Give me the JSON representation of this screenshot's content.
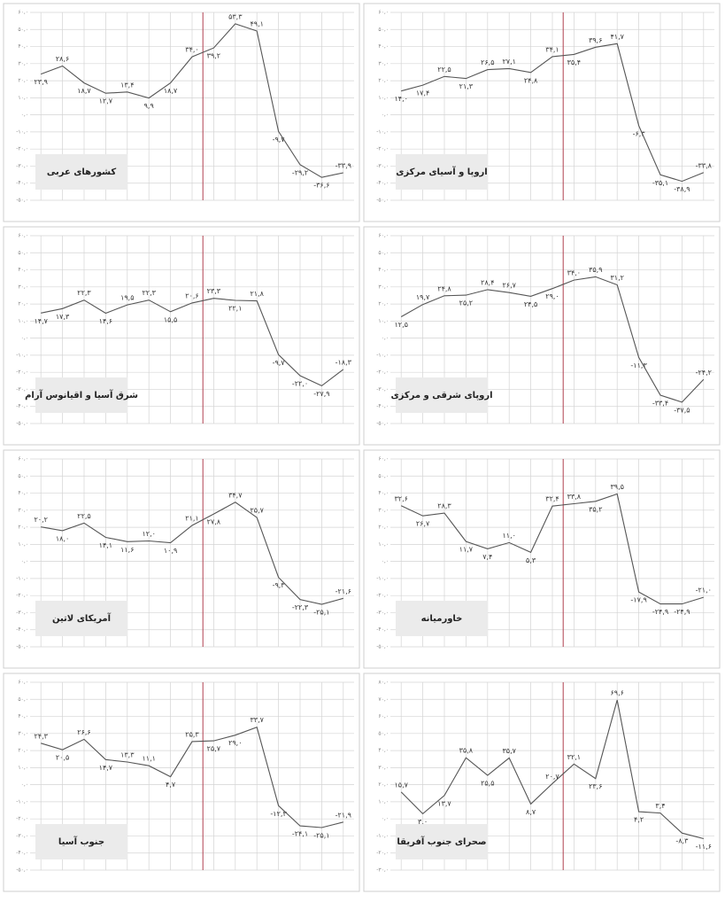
{
  "chart_data": [
    {
      "type": "line",
      "title": "کشورهای عربی",
      "color": "#555555",
      "reference_x": 7.5,
      "reference_color": "#b04050",
      "grid": true,
      "values": [
        23.9,
        28.6,
        18.7,
        12.7,
        13.4,
        9.9,
        18.7,
        34.0,
        39.2,
        53.3,
        49.1,
        -9.7,
        -29.2,
        -36.6,
        -33.9
      ],
      "value_labels": [
        "۲۳,۹",
        "۲۸,۶",
        "۱۸,۷",
        "۱۲,۷",
        "۱۳,۴",
        "۹,۹",
        "۱۸,۷",
        "۳۴,۰",
        "۳۹,۲",
        "۵۳,۳",
        "۴۹,۱",
        "-۹,۷",
        "-۲۹,۲",
        "-۳۶,۶",
        "-۳۳,۹"
      ],
      "ylim": [
        -50,
        60
      ],
      "yticks": [
        {
          "value": 60,
          "label": "۶۰,۰"
        },
        {
          "value": 50,
          "label": "۵۰,۰"
        },
        {
          "value": 40,
          "label": "۴۰,۰"
        },
        {
          "value": 30,
          "label": "۳۰,۰"
        },
        {
          "value": 20,
          "label": "۲۰,۰"
        },
        {
          "value": 10,
          "label": "۱۰,۰"
        },
        {
          "value": 0,
          "label": "۰,۰"
        },
        {
          "value": -10,
          "label": "-۱۰,۰"
        },
        {
          "value": -20,
          "label": "-۲۰,۰"
        },
        {
          "value": -30,
          "label": "-۳۰,۰"
        },
        {
          "value": -40,
          "label": "-۴۰,۰"
        },
        {
          "value": -50,
          "label": "-۵۰,۰"
        }
      ]
    },
    {
      "type": "line",
      "title": "اروپا و آسیای مرکزی",
      "color": "#555555",
      "reference_x": 7.5,
      "reference_color": "#b04050",
      "grid": true,
      "values": [
        14.0,
        17.4,
        22.5,
        21.3,
        26.5,
        27.1,
        24.8,
        34.1,
        35.4,
        39.6,
        41.7,
        -6.3,
        -35.1,
        -38.9,
        -33.8
      ],
      "value_labels": [
        "۱۴,۰",
        "۱۷,۴",
        "۲۲,۵",
        "۲۱,۳",
        "۲۶,۵",
        "۲۷,۱",
        "۲۴,۸",
        "۳۴,۱",
        "۳۵,۴",
        "۳۹,۶",
        "۴۱,۷",
        "-۶,۳",
        "-۳۵,۱",
        "-۳۸,۹",
        "-۳۳,۸"
      ],
      "ylim": [
        -50,
        60
      ],
      "yticks": [
        {
          "value": 60,
          "label": "۶۰,۰"
        },
        {
          "value": 50,
          "label": "۵۰,۰"
        },
        {
          "value": 40,
          "label": "۴۰,۰"
        },
        {
          "value": 30,
          "label": "۳۰,۰"
        },
        {
          "value": 20,
          "label": "۲۰,۰"
        },
        {
          "value": 10,
          "label": "۱۰,۰"
        },
        {
          "value": 0,
          "label": "۰,۰"
        },
        {
          "value": -10,
          "label": "-۱۰,۰"
        },
        {
          "value": -20,
          "label": "-۲۰,۰"
        },
        {
          "value": -30,
          "label": "-۳۰,۰"
        },
        {
          "value": -40,
          "label": "-۴۰,۰"
        },
        {
          "value": -50,
          "label": "-۵۰,۰"
        }
      ]
    },
    {
      "type": "line",
      "title": "شرق آسیا و اقیانوس آرام",
      "color": "#555555",
      "reference_x": 7.5,
      "reference_color": "#b04050",
      "grid": true,
      "values": [
        14.7,
        17.3,
        22.3,
        14.6,
        19.5,
        22.3,
        15.5,
        20.6,
        23.3,
        22.1,
        21.8,
        -9.7,
        -22.0,
        -27.9,
        -18.3
      ],
      "value_labels": [
        "۱۴,۷",
        "۱۷,۳",
        "۲۲,۳",
        "۱۴,۶",
        "۱۹,۵",
        "۲۲,۳",
        "۱۵,۵",
        "۲۰,۶",
        "۲۳,۳",
        "۲۲,۱",
        "۲۱,۸",
        "-۹,۷",
        "-۲۲,۰",
        "-۲۷,۹",
        "-۱۸,۳"
      ],
      "ylim": [
        -50,
        60
      ],
      "yticks": [
        {
          "value": 60,
          "label": "۶۰,۰"
        },
        {
          "value": 50,
          "label": "۵۰,۰"
        },
        {
          "value": 40,
          "label": "۴۰,۰"
        },
        {
          "value": 30,
          "label": "۳۰,۰"
        },
        {
          "value": 20,
          "label": "۲۰,۰"
        },
        {
          "value": 10,
          "label": "۱۰,۰"
        },
        {
          "value": 0,
          "label": "۰,۰"
        },
        {
          "value": -10,
          "label": "-۱۰,۰"
        },
        {
          "value": -20,
          "label": "-۲۰,۰"
        },
        {
          "value": -30,
          "label": "-۳۰,۰"
        },
        {
          "value": -40,
          "label": "-۴۰,۰"
        },
        {
          "value": -50,
          "label": "-۵۰,۰"
        }
      ]
    },
    {
      "type": "line",
      "title": "اروپای شرقی و مرکزی",
      "color": "#555555",
      "reference_x": 7.5,
      "reference_color": "#b04050",
      "grid": true,
      "values": [
        12.5,
        19.7,
        24.8,
        25.2,
        28.4,
        26.7,
        24.5,
        29.0,
        34.0,
        35.9,
        31.2,
        -11.3,
        -33.4,
        -37.5,
        -24.2
      ],
      "value_labels": [
        "۱۲,۵",
        "۱۹,۷",
        "۲۴,۸",
        "۲۵,۲",
        "۲۸,۴",
        "۲۶,۷",
        "۲۴,۵",
        "۲۹,۰",
        "۳۴,۰",
        "۳۵,۹",
        "۳۱,۲",
        "-۱۱,۳",
        "-۳۳,۴",
        "-۳۷,۵",
        "-۲۴,۲"
      ],
      "ylim": [
        -50,
        60
      ],
      "yticks": [
        {
          "value": 60,
          "label": "۶۰,۰"
        },
        {
          "value": 50,
          "label": "۵۰,۰"
        },
        {
          "value": 40,
          "label": "۴۰,۰"
        },
        {
          "value": 30,
          "label": "۳۰,۰"
        },
        {
          "value": 20,
          "label": "۲۰,۰"
        },
        {
          "value": 10,
          "label": "۱۰,۰"
        },
        {
          "value": 0,
          "label": "۰,۰"
        },
        {
          "value": -10,
          "label": "-۱۰,۰"
        },
        {
          "value": -20,
          "label": "-۲۰,۰"
        },
        {
          "value": -30,
          "label": "-۳۰,۰"
        },
        {
          "value": -40,
          "label": "-۴۰,۰"
        },
        {
          "value": -50,
          "label": "-۵۰,۰"
        }
      ]
    },
    {
      "type": "line",
      "title": "آمریکای لاتین",
      "color": "#555555",
      "reference_x": 7.5,
      "reference_color": "#b04050",
      "grid": true,
      "values": [
        20.2,
        18.0,
        22.5,
        14.1,
        11.6,
        12.0,
        10.9,
        21.1,
        27.8,
        34.7,
        25.7,
        -9.3,
        -22.3,
        -25.1,
        -21.6
      ],
      "value_labels": [
        "۲۰,۲",
        "۱۸,۰",
        "۲۲,۵",
        "۱۴,۱",
        "۱۱,۶",
        "۱۲,۰",
        "۱۰,۹",
        "۲۱,۱",
        "۲۷,۸",
        "۳۴,۷",
        "۲۵,۷",
        "-۹,۳",
        "-۲۲,۳",
        "-۲۵,۱",
        "-۲۱,۶"
      ],
      "ylim": [
        -50,
        60
      ],
      "yticks": [
        {
          "value": 60,
          "label": "۶۰,۰"
        },
        {
          "value": 50,
          "label": "۵۰,۰"
        },
        {
          "value": 40,
          "label": "۴۰,۰"
        },
        {
          "value": 30,
          "label": "۳۰,۰"
        },
        {
          "value": 20,
          "label": "۲۰,۰"
        },
        {
          "value": 10,
          "label": "۱۰,۰"
        },
        {
          "value": 0,
          "label": "۰,۰"
        },
        {
          "value": -10,
          "label": "-۱۰,۰"
        },
        {
          "value": -20,
          "label": "-۲۰,۰"
        },
        {
          "value": -30,
          "label": "-۳۰,۰"
        },
        {
          "value": -40,
          "label": "-۴۰,۰"
        },
        {
          "value": -50,
          "label": "-۵۰,۰"
        }
      ]
    },
    {
      "type": "line",
      "title": "خاورمیانه",
      "color": "#555555",
      "reference_x": 7.5,
      "reference_color": "#b04050",
      "grid": true,
      "values": [
        32.6,
        26.7,
        28.3,
        11.7,
        7.4,
        11.0,
        5.3,
        32.4,
        33.8,
        35.2,
        39.5,
        -17.9,
        -24.9,
        -24.9,
        -21.0
      ],
      "value_labels": [
        "۳۲,۶",
        "۲۶,۷",
        "۲۸,۳",
        "۱۱,۷",
        "۷,۴",
        "۱۱,۰",
        "۵,۳",
        "۳۲,۴",
        "۳۳,۸",
        "۳۵,۲",
        "۳۹,۵",
        "-۱۷,۹",
        "-۲۴,۹",
        "-۲۴,۹",
        "-۲۱,۰"
      ],
      "ylim": [
        -50,
        60
      ],
      "yticks": [
        {
          "value": 60,
          "label": "۶۰,۰"
        },
        {
          "value": 50,
          "label": "۵۰,۰"
        },
        {
          "value": 40,
          "label": "۴۰,۰"
        },
        {
          "value": 30,
          "label": "۳۰,۰"
        },
        {
          "value": 20,
          "label": "۲۰,۰"
        },
        {
          "value": 10,
          "label": "۱۰,۰"
        },
        {
          "value": 0,
          "label": "۰,۰"
        },
        {
          "value": -10,
          "label": "-۱۰,۰"
        },
        {
          "value": -20,
          "label": "-۲۰,۰"
        },
        {
          "value": -30,
          "label": "-۳۰,۰"
        },
        {
          "value": -40,
          "label": "-۴۰,۰"
        },
        {
          "value": -50,
          "label": "-۵۰,۰"
        }
      ]
    },
    {
      "type": "line",
      "title": "جنوب آسیا",
      "color": "#555555",
      "reference_x": 7.5,
      "reference_color": "#b04050",
      "grid": true,
      "values": [
        24.3,
        20.5,
        26.6,
        14.7,
        13.3,
        11.1,
        4.7,
        25.3,
        25.7,
        29.0,
        33.7,
        -12.3,
        -24.1,
        -25.1,
        -21.9
      ],
      "value_labels": [
        "۲۴,۳",
        "۲۰,۵",
        "۲۶,۶",
        "۱۴,۷",
        "۱۳,۳",
        "۱۱,۱",
        "۴,۷",
        "۲۵,۳",
        "۲۵,۷",
        "۲۹,۰",
        "۳۳,۷",
        "-۱۲,۳",
        "-۲۴,۱",
        "-۲۵,۱",
        "-۲۱,۹"
      ],
      "ylim": [
        -50,
        60
      ],
      "yticks": [
        {
          "value": 60,
          "label": "۶۰,۰"
        },
        {
          "value": 50,
          "label": "۵۰,۰"
        },
        {
          "value": 40,
          "label": "۴۰,۰"
        },
        {
          "value": 30,
          "label": "۳۰,۰"
        },
        {
          "value": 20,
          "label": "۲۰,۰"
        },
        {
          "value": 10,
          "label": "۱۰,۰"
        },
        {
          "value": 0,
          "label": "۰,۰"
        },
        {
          "value": -10,
          "label": "-۱۰,۰"
        },
        {
          "value": -20,
          "label": "-۲۰,۰"
        },
        {
          "value": -30,
          "label": "-۳۰,۰"
        },
        {
          "value": -40,
          "label": "-۴۰,۰"
        },
        {
          "value": -50,
          "label": "-۵۰,۰"
        }
      ]
    },
    {
      "type": "line",
      "title": "صحرای جنوب آفریقا",
      "color": "#555555",
      "reference_x": 7.5,
      "reference_color": "#b04050",
      "grid": true,
      "values": [
        15.7,
        3.0,
        13.7,
        35.8,
        25.5,
        35.7,
        8.7,
        20.7,
        32.1,
        23.6,
        69.6,
        4.2,
        3.4,
        -8.3,
        -11.6
      ],
      "value_labels": [
        "۱۵,۷",
        "۳,۰",
        "۱۳,۷",
        "۳۵,۸",
        "۲۵,۵",
        "۳۵,۷",
        "۸,۷",
        "۲۰,۷",
        "۳۲,۱",
        "۲۳,۶",
        "۶۹,۶",
        "۴,۲",
        "۳,۴",
        "-۸,۳",
        "-۱۱,۶"
      ],
      "ylim": [
        -30,
        80
      ],
      "yticks": [
        {
          "value": 80,
          "label": "۸۰,۰"
        },
        {
          "value": 70,
          "label": "۷۰,۰"
        },
        {
          "value": 60,
          "label": "۶۰,۰"
        },
        {
          "value": 50,
          "label": "۵۰,۰"
        },
        {
          "value": 40,
          "label": "۴۰,۰"
        },
        {
          "value": 30,
          "label": "۳۰,۰"
        },
        {
          "value": 20,
          "label": "۲۰,۰"
        },
        {
          "value": 10,
          "label": "۱۰,۰"
        },
        {
          "value": 0,
          "label": "۰,۰"
        },
        {
          "value": -10,
          "label": "-۱۰,۰"
        },
        {
          "value": -20,
          "label": "-۲۰,۰"
        },
        {
          "value": -30,
          "label": "-۳۰,۰"
        }
      ]
    }
  ]
}
